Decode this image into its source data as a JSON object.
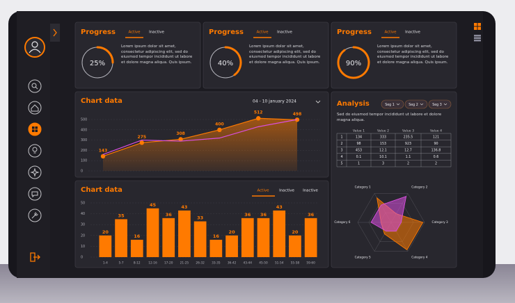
{
  "progress_cards": [
    {
      "title": "Progress",
      "tabs": [
        "Active",
        "Inactive"
      ],
      "percent": 25,
      "percent_label": "25%",
      "text": "Lorem ipsum dolor sit amet, consectetur adipiscing elit, sed do eiusmod tempor incididunt ut labore et dolore magna aliqua. Quis ipsum."
    },
    {
      "title": "Progress",
      "tabs": [
        "Active",
        "Inactive"
      ],
      "percent": 40,
      "percent_label": "40%",
      "text": "Lorem ipsum dolor sit amet, consectetur adipiscing elit, sed do eiusmod tempor incididunt ut labore et dolore magna aliqua. Quis ipsum."
    },
    {
      "title": "Progress",
      "tabs": [
        "Active",
        "Inactive"
      ],
      "percent": 90,
      "percent_label": "90%",
      "text": "Lorem ipsum dolor sit amet, consectetur adipiscing elit, sed do eiusmod tempor incididunt ut labore et dolore magna aliqua. Quis ipsum."
    }
  ],
  "line_chart": {
    "type": "line",
    "title": "Chart data",
    "date": "04 - 10 january 2024",
    "ylim": [
      0,
      550
    ],
    "yticks": [
      0,
      100,
      200,
      300,
      400,
      500
    ],
    "grid": true,
    "series": [
      {
        "color": "#ff7a00",
        "values": [
          143,
          275,
          308,
          400,
          512,
          498
        ]
      },
      {
        "color": "#d94fe0",
        "values": [
          160,
          300,
          290,
          320,
          430,
          500
        ]
      }
    ]
  },
  "bar_chart": {
    "type": "bar",
    "title": "Chart data",
    "tabs": [
      "Active",
      "Inactive",
      "Inactive"
    ],
    "categories": [
      "1-4",
      "5-7",
      "8-12",
      "12-16",
      "17-20",
      "21-25",
      "26-32",
      "33-35",
      "36-42",
      "43-44",
      "45-50",
      "51-54",
      "55-58",
      "59-60"
    ],
    "values": [
      20,
      35,
      16,
      45,
      36,
      43,
      33,
      16,
      20,
      36,
      36,
      43,
      20,
      36
    ],
    "color": "#ff7a00",
    "ylim": [
      0,
      50
    ],
    "yticks": [
      0,
      10,
      20,
      30,
      40,
      50
    ],
    "grid": true
  },
  "analysis": {
    "title": "Analysis",
    "segments": [
      "Seg 1",
      "Seg 2",
      "Seg 3"
    ],
    "text": "Sed do eiusmod tempor incididunt ut labore et dolore magna aliqua.",
    "table": {
      "columns": [
        "Value 1",
        "Value 2",
        "Value 3",
        "Value 4"
      ],
      "rows": [
        [
          1,
          134,
          333,
          235.5,
          121
        ],
        [
          2,
          98,
          153,
          923,
          90
        ],
        [
          3,
          453,
          12.1,
          12.7,
          136.8
        ],
        [
          4,
          0.1,
          10.1,
          1.1,
          0.6
        ],
        [
          5,
          1,
          3,
          2,
          2
        ]
      ]
    },
    "radar": {
      "type": "radar",
      "categories": [
        "Category 1",
        "Category 2",
        "Category 3",
        "Category 4",
        "Category 5",
        "Category 6"
      ],
      "rlim": [
        0,
        100
      ],
      "series": [
        {
          "color": "#ff7a00",
          "values": [
            85,
            30,
            95,
            95,
            40,
            30
          ]
        },
        {
          "color": "#d94fe0",
          "values": [
            60,
            90,
            30,
            30,
            30,
            60
          ]
        }
      ]
    }
  }
}
